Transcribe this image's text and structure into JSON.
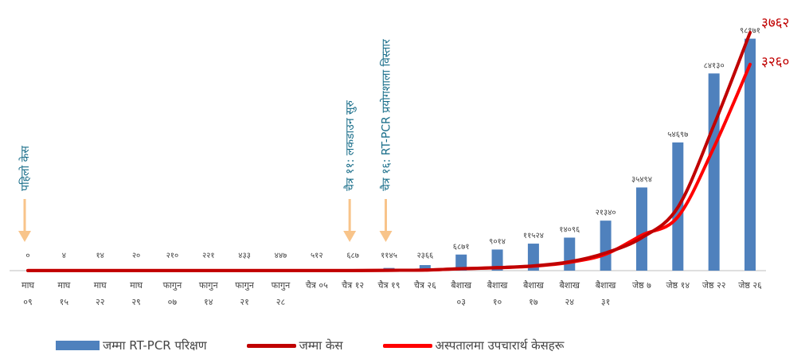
{
  "chart_data": {
    "type": "bar",
    "categories": [
      [
        "माघ",
        "०९"
      ],
      [
        "माघ",
        "१५"
      ],
      [
        "माघ",
        "२२"
      ],
      [
        "माघ",
        "२९"
      ],
      [
        "फागुन",
        "०७"
      ],
      [
        "फागुन",
        "१४"
      ],
      [
        "फागुन",
        "२१"
      ],
      [
        "फागुन",
        "२८"
      ],
      [
        "चैत्र ०५",
        ""
      ],
      [
        "चैत्र १२",
        ""
      ],
      [
        "चैत्र १९",
        ""
      ],
      [
        "चैत्र २६",
        ""
      ],
      [
        "बैशाख",
        "०३"
      ],
      [
        "बैशाख",
        "१०"
      ],
      [
        "बैशाख",
        "१७"
      ],
      [
        "बैशाख",
        "२४"
      ],
      [
        "बैशाख",
        "३१"
      ],
      [
        "जेष्ठ ७",
        ""
      ],
      [
        "जेष्ठ १४",
        ""
      ],
      [
        "जेष्ठ २२",
        ""
      ],
      [
        "जेष्ठ २६",
        ""
      ]
    ],
    "series": [
      {
        "name": "जम्मा RT-PCR परिक्षण",
        "kind": "bar",
        "color": "#4f81bd",
        "values": [
          0,
          4,
          14,
          20,
          210,
          221,
          433,
          447,
          512,
          687,
          1145,
          2366,
          6871,
          9014,
          11524,
          14096,
          21340,
          35494,
          54697,
          84130,
          98971
        ],
        "labels": [
          "०",
          "४",
          "१४",
          "२०",
          "२१०",
          "२२१",
          "४३३",
          "४४७",
          "५१२",
          "६८७",
          "११४५",
          "२३६६",
          "६८७१",
          "९०१४",
          "११५२४",
          "१४०९६",
          "२१३४०",
          "३५४९४",
          "५४६९७",
          "८४१३०",
          "९८९७१"
        ]
      },
      {
        "name": "जम्मा केस",
        "kind": "line",
        "color": "#c00000",
        "values": [
          1,
          1,
          1,
          1,
          1,
          1,
          1,
          1,
          1,
          2,
          5,
          9,
          31,
          48,
          75,
          140,
          280,
          520,
          1000,
          2300,
          3762
        ],
        "end_label": "३७६२"
      },
      {
        "name": "अस्पतालमा उपचारार्थ केसहरू",
        "kind": "line",
        "color": "#ff0000",
        "values": [
          1,
          1,
          1,
          1,
          1,
          1,
          1,
          1,
          1,
          2,
          5,
          9,
          30,
          45,
          70,
          130,
          260,
          560,
          850,
          1950,
          3260
        ],
        "end_label": "३२६०"
      }
    ],
    "annotations": [
      {
        "text": "पहिलो केस",
        "category_index": 0
      },
      {
        "text": "चैत्र ११: लकडाउन सुरु",
        "category_index": 9
      },
      {
        "text": "चैत्र १६: RT-PCR प्रयोगशाला विस्तार",
        "category_index": 10
      }
    ],
    "bar_ylim": [
      0,
      108000
    ],
    "line_ylim": [
      0,
      4000
    ],
    "grid": false,
    "legend_position": "bottom"
  }
}
